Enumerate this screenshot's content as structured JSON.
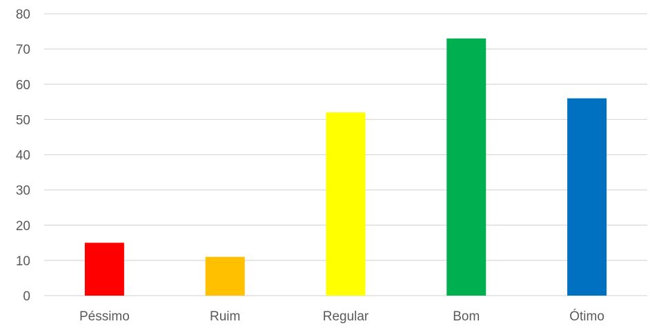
{
  "chart_data": {
    "type": "bar",
    "title": "",
    "xlabel": "",
    "ylabel": "",
    "categories": [
      "Péssimo",
      "Ruim",
      "Regular",
      "Bom",
      "Ótimo"
    ],
    "values": [
      15,
      11,
      52,
      73,
      56
    ],
    "colors": [
      "#ff0000",
      "#ffc000",
      "#ffff00",
      "#00b050",
      "#0070c0"
    ],
    "ylim": [
      0,
      80
    ],
    "yticks": [
      0,
      10,
      20,
      30,
      40,
      50,
      60,
      70,
      80
    ],
    "grid": true,
    "legend": "none"
  }
}
